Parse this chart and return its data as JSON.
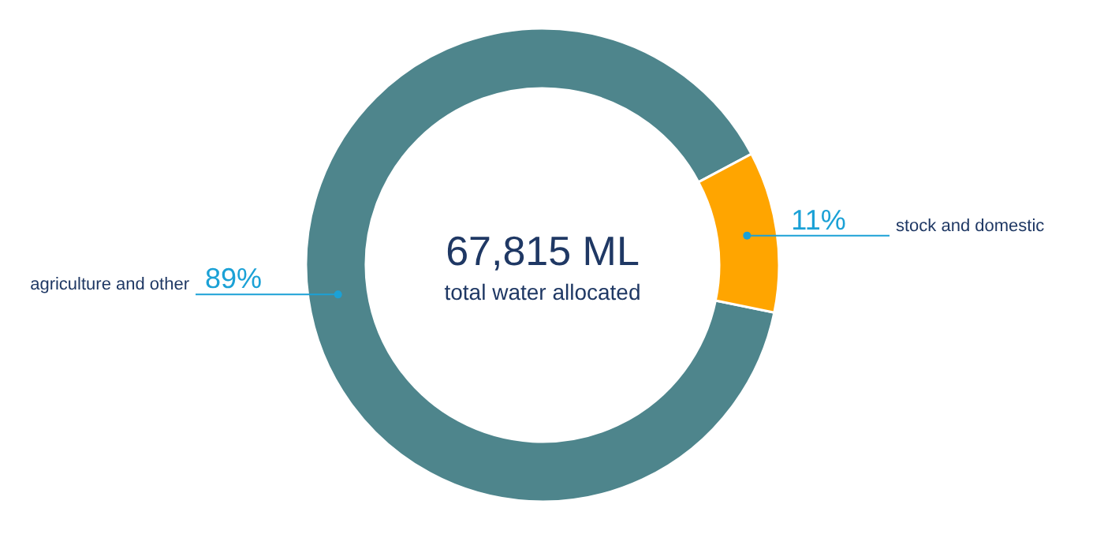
{
  "chart_data": {
    "type": "donut",
    "title": "67,815 ML",
    "subtitle": "total water allocated",
    "categories": [
      "agriculture and other",
      "stock and domestic"
    ],
    "values": [
      89,
      11
    ],
    "colors": [
      "#4e858c",
      "#ffa500"
    ],
    "value_labels": [
      "89%",
      "11%"
    ]
  }
}
